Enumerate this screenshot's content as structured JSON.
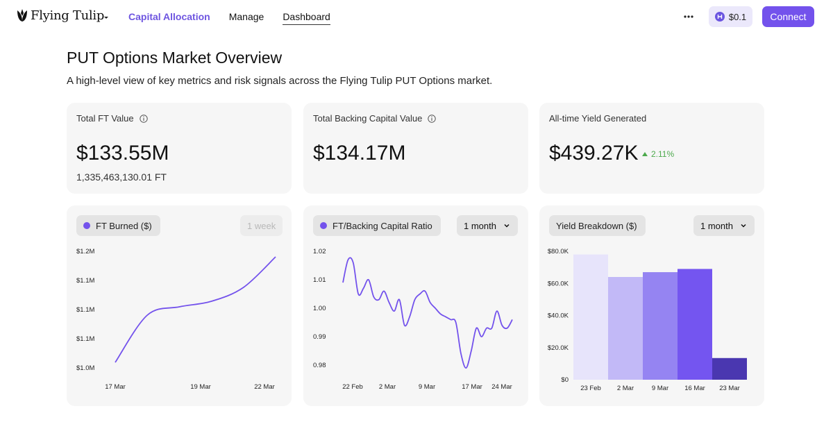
{
  "header": {
    "brand": "Flying Tulip",
    "nav": [
      {
        "label": "Capital Allocation"
      },
      {
        "label": "Manage"
      },
      {
        "label": "Dashboard"
      }
    ],
    "balance": "$0.1",
    "connect_label": "Connect",
    "accent_color": "#7352ec"
  },
  "page": {
    "title": "PUT Options Market Overview",
    "subtitle": "A high-level view of key metrics and risk signals across the Flying Tulip PUT Options market."
  },
  "metrics": {
    "total_ft": {
      "label": "Total FT Value",
      "value": "$133.55M",
      "sub": "1,335,463,130.01 FT"
    },
    "backing": {
      "label": "Total Backing Capital Value",
      "value": "$134.17M"
    },
    "yield": {
      "label": "All-time Yield Generated",
      "value": "$439.27K",
      "change": "2.11%"
    }
  },
  "charts": {
    "burned": {
      "legend": "FT Burned ($)",
      "range": "1 week"
    },
    "ratio": {
      "legend": "FT/Backing Capital Ratio",
      "range": "1 month"
    },
    "yield": {
      "legend": "Yield Breakdown ($)",
      "range": "1 month"
    }
  },
  "chart_data": [
    {
      "type": "line",
      "title": "FT Burned ($)",
      "x": [
        "17 Mar",
        "18 Mar",
        "19 Mar",
        "20 Mar",
        "21 Mar",
        "22 Mar"
      ],
      "values": [
        1.0,
        1.085,
        1.1,
        1.11,
        1.135,
        1.19
      ],
      "ytick_labels": [
        "$1.2M",
        "$1.1M",
        "$1.1M",
        "$1.1M",
        "$1.0M"
      ],
      "xtick_labels": [
        "17 Mar",
        "19 Mar",
        "22 Mar"
      ],
      "ylim": [
        0.99,
        1.2
      ]
    },
    {
      "type": "line",
      "title": "FT/Backing Capital Ratio",
      "x": [
        "20 Feb",
        "21 Feb",
        "22 Feb",
        "23 Feb",
        "24 Feb",
        "25 Feb",
        "26 Feb",
        "27 Feb",
        "28 Feb",
        "1 Mar",
        "2 Mar",
        "3 Mar",
        "4 Mar",
        "5 Mar",
        "6 Mar",
        "7 Mar",
        "8 Mar",
        "9 Mar",
        "10 Mar",
        "11 Mar",
        "12 Mar",
        "13 Mar",
        "14 Mar",
        "15 Mar",
        "16 Mar",
        "17 Mar",
        "18 Mar",
        "19 Mar",
        "20 Mar",
        "21 Mar",
        "22 Mar",
        "23 Mar",
        "24 Mar",
        "25 Mar"
      ],
      "values": [
        1.009,
        1.017,
        1.016,
        1.005,
        1.007,
        1.01,
        1.004,
        1.003,
        1.006,
        1.002,
        0.999,
        1.003,
        0.994,
        0.997,
        1.003,
        1.005,
        1.006,
        1.002,
        1.0,
        0.998,
        0.997,
        0.996,
        0.995,
        0.984,
        0.979,
        0.985,
        0.993,
        0.99,
        0.993,
        0.993,
        0.999,
        0.994,
        0.993,
        0.996
      ],
      "ytick_labels": [
        "1.02",
        "1.01",
        "1.00",
        "0.99",
        "0.98"
      ],
      "yticks": [
        1.02,
        1.01,
        1.0,
        0.99,
        0.98
      ],
      "xtick_labels": [
        "22 Feb",
        "2 Mar",
        "9 Mar",
        "17 Mar",
        "24 Mar"
      ],
      "ylim": [
        0.975,
        1.02
      ]
    },
    {
      "type": "bar",
      "title": "Yield Breakdown ($)",
      "categories": [
        "23 Feb",
        "2 Mar",
        "9 Mar",
        "16 Mar",
        "23 Mar"
      ],
      "values": [
        78,
        64,
        67,
        69,
        13.5
      ],
      "colors": [
        "#e7e4fb",
        "#c2b9f7",
        "#9584f2",
        "#7455f0",
        "#4a37b0"
      ],
      "ytick_labels": [
        "$80.0K",
        "$60.0K",
        "$40.0K",
        "$20.0K",
        "$0"
      ],
      "yticks": [
        80,
        60,
        40,
        20,
        0
      ],
      "ylim": [
        0,
        80
      ]
    }
  ]
}
